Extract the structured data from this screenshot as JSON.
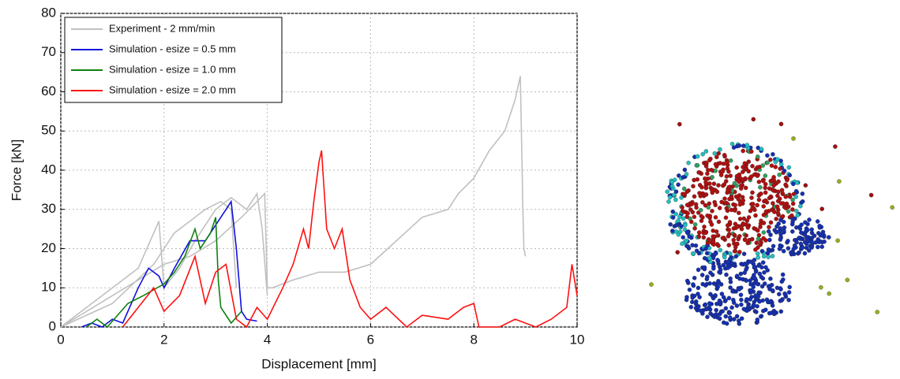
{
  "chart_data": {
    "type": "line",
    "xlabel": "Displacement [mm]",
    "ylabel": "Force [kN]",
    "xlim": [
      0,
      10
    ],
    "ylim": [
      0,
      80
    ],
    "xticks": [
      0,
      2,
      4,
      6,
      8,
      10
    ],
    "yticks": [
      0,
      10,
      20,
      30,
      40,
      50,
      60,
      70,
      80
    ],
    "grid": true,
    "legend": "upper left",
    "series": [
      {
        "name": "Experiment - 2 mm/min",
        "color": "#c0c0c0",
        "x": [
          0,
          0.5,
          1,
          1.5,
          2,
          2.5,
          3,
          3.5,
          3.8,
          3.95,
          4.0,
          4.1,
          4.5,
          5,
          5.5,
          6,
          6.5,
          7,
          7.5,
          7.7,
          8,
          8.3,
          8.6,
          8.8,
          8.9,
          8.95,
          8.97,
          9.0,
          null,
          0,
          0.8,
          1.5,
          1.9,
          2.0,
          2.3,
          2.6,
          3.0,
          3.3,
          3.6,
          3.8,
          3.9,
          4.0,
          null,
          0,
          1,
          1.8,
          2.2,
          2.5,
          2.8,
          3.1,
          3.3,
          3.4
        ],
        "values": [
          0,
          4,
          8,
          12,
          16,
          18,
          22,
          28,
          32,
          34,
          10,
          10,
          12,
          14,
          14,
          16,
          22,
          28,
          30,
          34,
          38,
          45,
          50,
          58,
          64,
          30,
          20,
          18,
          null,
          0,
          8,
          15,
          27,
          10,
          15,
          22,
          30,
          33,
          30,
          34,
          25,
          8,
          null,
          0,
          6,
          16,
          24,
          27,
          30,
          32,
          30,
          10
        ]
      },
      {
        "name": "Simulation - esize = 0.5 mm",
        "color": "#1010e0",
        "x": [
          0.4,
          0.6,
          0.8,
          1.0,
          1.2,
          1.5,
          1.7,
          1.9,
          2.0,
          2.2,
          2.5,
          2.8,
          3.0,
          3.2,
          3.3,
          3.4,
          3.5,
          3.6,
          3.8
        ],
        "values": [
          0,
          1,
          0,
          2,
          1,
          10,
          15,
          13,
          10,
          15,
          22,
          22,
          26,
          30,
          32,
          20,
          4,
          2,
          1.5
        ]
      },
      {
        "name": "Simulation - esize = 1.0 mm",
        "color": "#108010",
        "x": [
          0.5,
          0.7,
          0.9,
          1.1,
          1.3,
          1.6,
          2.0,
          2.2,
          2.4,
          2.6,
          2.7,
          2.9,
          3.0,
          3.05,
          3.1,
          3.3,
          3.5
        ],
        "values": [
          0,
          2,
          0,
          3,
          6,
          8,
          11,
          14,
          18,
          25,
          20,
          24,
          28,
          12,
          5,
          1,
          4
        ]
      },
      {
        "name": "Simulation - esize = 2.0 mm",
        "color": "#ff1010",
        "x": [
          1.2,
          1.5,
          1.8,
          2.0,
          2.3,
          2.6,
          2.8,
          3.0,
          3.2,
          3.4,
          3.6,
          3.8,
          4,
          4.3,
          4.5,
          4.7,
          4.8,
          4.9,
          5.0,
          5.05,
          5.15,
          5.3,
          5.45,
          5.6,
          5.8,
          6.0,
          6.3,
          6.7,
          7,
          7.5,
          7.8,
          8,
          8.1,
          8.5,
          8.8,
          9.2,
          9.5,
          9.8,
          9.9,
          10
        ],
        "values": [
          0,
          5,
          10,
          4,
          8,
          18,
          6,
          14,
          16,
          2,
          0,
          5,
          2,
          10,
          16,
          25,
          20,
          32,
          42,
          45,
          25,
          20,
          25,
          12,
          5,
          2,
          5,
          0,
          3,
          2,
          5,
          6,
          0,
          0,
          2,
          0,
          2,
          5,
          16,
          8
        ]
      }
    ]
  }
}
